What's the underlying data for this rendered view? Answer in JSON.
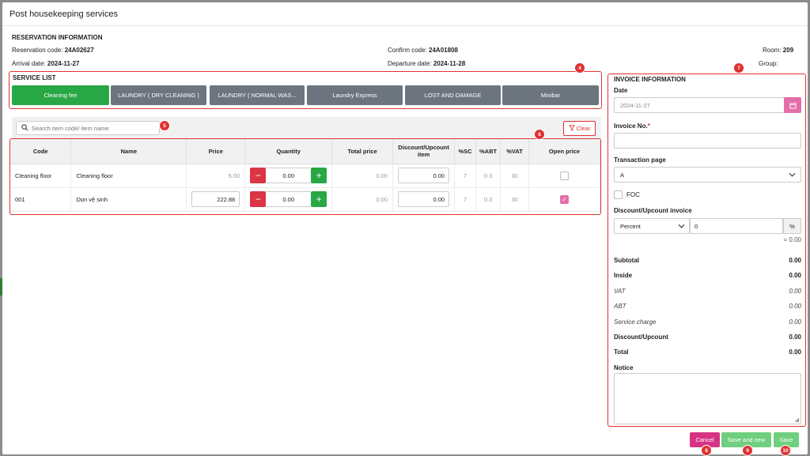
{
  "modal": {
    "title": "Post housekeeping services"
  },
  "reservation": {
    "title": "RESERVATION INFORMATION",
    "reservation_code_label": "Reservation code:",
    "reservation_code": "24A02627",
    "confirm_code_label": "Confirm code:",
    "confirm_code": "24A01808",
    "room_label": "Room:",
    "room": "209",
    "arrival_label": "Arrival date:",
    "arrival": "2024-11-27",
    "departure_label": "Departure date:",
    "departure": "2024-11-28",
    "group_label": "Group:"
  },
  "badges": {
    "b4": "4",
    "b5": "5",
    "b6": "6",
    "b7": "7",
    "b8": "8",
    "b9": "9",
    "b10": "10"
  },
  "service_list": {
    "title": "SERVICE LIST",
    "items": [
      "Cleaning fee",
      "LAUNDRY ( DRY CLEANING )",
      "LAUNDRY ( NORMAL WAS...",
      "Laundry Express",
      "LOST AND DAMAGE",
      "Minibar"
    ]
  },
  "search": {
    "placeholder": "Search item code/ item name"
  },
  "clear_label": "Clear",
  "table": {
    "headers": [
      "Code",
      "Name",
      "Price",
      "Quantity",
      "Total price",
      "Discount/Upcount item",
      "%SC",
      "%ABT",
      "%VAT",
      "Open price"
    ],
    "rows": [
      {
        "code": "Cleaning floor",
        "name": "Cleaning floor",
        "price": "5.00",
        "quantity": "0.00",
        "total": "0.00",
        "discount": "0.00",
        "sc": "7",
        "abt": "0.3",
        "vat": "30",
        "open_price": false
      },
      {
        "code": "001",
        "name": "Dọn vệ sinh",
        "price": "222.88",
        "quantity": "0.00",
        "total": "0.00",
        "discount": "0.00",
        "sc": "7",
        "abt": "0.3",
        "vat": "30",
        "open_price": true
      }
    ]
  },
  "invoice": {
    "title": "INVOICE INFORMATION",
    "date_label": "Date",
    "date_value": "2024-11-27",
    "invoice_no_label": "Invoice No.",
    "required_mark": "*",
    "transaction_page_label": "Transaction page",
    "transaction_page_value": "A",
    "foc_label": "FOC",
    "discount_label": "Discount/Upcount invoice",
    "discount_type": "Percent",
    "discount_value": "0",
    "percent_symbol": "%",
    "discount_result": "= 0.00",
    "subtotal_label": "Subtotal",
    "subtotal": "0.00",
    "inside_label": "Inside",
    "inside": "0.00",
    "vat_label": "VAT",
    "vat": "0.00",
    "abt_label": "ABT",
    "abt": "0.00",
    "service_charge_label": "Service charge",
    "service_charge": "0.00",
    "discount_upcount_label": "Discount/Upcount",
    "discount_upcount": "0.00",
    "total_label": "Total",
    "total": "0.00",
    "notice_label": "Notice"
  },
  "footer": {
    "cancel": "Cancel",
    "save_and_new": "Save and new",
    "save": "Save"
  },
  "colors": {
    "primary_green": "#28a745",
    "danger": "#dc3545",
    "gray_button": "#6c757d",
    "annotation_red": "#e03131",
    "cancel_pink": "#d63384",
    "save_green": "#6fcf7f"
  }
}
